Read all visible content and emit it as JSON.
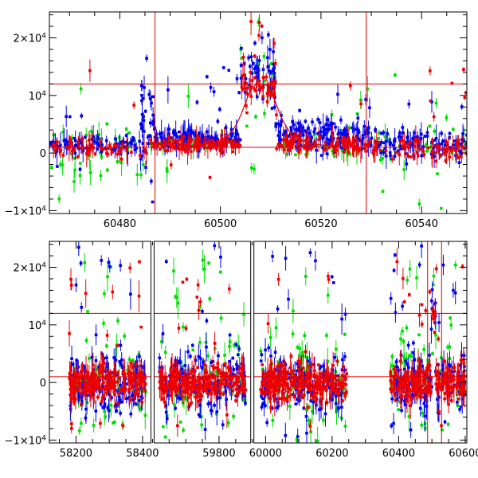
{
  "chart_data": [
    {
      "type": "scatter",
      "panel": "top",
      "title": "",
      "xlabel": "",
      "ylabel": "",
      "xlim": [
        60466,
        60549
      ],
      "ylim": [
        -10500,
        24500
      ],
      "x_ticks": [
        60480,
        60500,
        60520,
        60540
      ],
      "x_tick_labels": [
        "60480",
        "60500",
        "60520",
        "60540"
      ],
      "y_ticks": [
        -10000,
        0,
        10000,
        20000
      ],
      "y_tick_labels": [
        {
          "m": "−1×10",
          "e": "4"
        },
        {
          "m": "0",
          "e": ""
        },
        {
          "m": "10",
          "e": "4"
        },
        {
          "m": "2×10",
          "e": "4"
        }
      ],
      "reference_lines": {
        "horizontal": [
          12000,
          1000
        ],
        "vertical": [
          60487,
          60529
        ]
      },
      "model_curve": {
        "baseline": 1000,
        "peak_x": 60508,
        "peak_height": 11000,
        "half_width": 4
      },
      "series": [
        {
          "color": "#00dd00",
          "segments": [
            {
              "x0": 60466,
              "x1": 60486,
              "n": 45,
              "base": 0,
              "sigma": 2500,
              "outlier_frac": 0.2,
              "out_lo": -11000,
              "out_hi": 14000
            },
            {
              "x0": 60486,
              "x1": 60504,
              "n": 30,
              "base": 1800,
              "sigma": 500,
              "outlier_frac": 0.1,
              "out_lo": -7000,
              "out_hi": 10000
            },
            {
              "x0": 60504,
              "x1": 60512,
              "n": 18,
              "base": 13000,
              "sigma": 4000,
              "outlier_frac": 0.3,
              "out_lo": -7000,
              "out_hi": 24000
            },
            {
              "x0": 60512,
              "x1": 60530,
              "n": 35,
              "base": 800,
              "sigma": 1200,
              "outlier_frac": 0.2,
              "out_lo": -10000,
              "out_hi": 22000
            },
            {
              "x0": 60530,
              "x1": 60549,
              "n": 35,
              "base": 500,
              "sigma": 2000,
              "outlier_frac": 0.2,
              "out_lo": -10000,
              "out_hi": 22000
            }
          ]
        },
        {
          "color": "#0000ee",
          "segments": [
            {
              "x0": 60466,
              "x1": 60484,
              "n": 90,
              "base": 1500,
              "sigma": 700,
              "outlier_frac": 0.06,
              "out_lo": -3000,
              "out_hi": 7000
            },
            {
              "x0": 60484,
              "x1": 60487,
              "n": 40,
              "base": 5000,
              "sigma": 4500,
              "outlier_frac": 0.1,
              "out_lo": -3000,
              "out_hi": 13000
            },
            {
              "x0": 60487,
              "x1": 60504,
              "n": 140,
              "base": 2500,
              "sigma": 800,
              "outlier_frac": 0.08,
              "out_lo": 0,
              "out_hi": 15000
            },
            {
              "x0": 60504,
              "x1": 60511,
              "n": 50,
              "base": 14000,
              "sigma": 3500,
              "outlier_frac": 0.05,
              "out_lo": 8000,
              "out_hi": 22000
            },
            {
              "x0": 60511,
              "x1": 60530,
              "n": 170,
              "base": 3000,
              "sigma": 1300,
              "outlier_frac": 0.08,
              "out_lo": 0,
              "out_hi": 12000
            },
            {
              "x0": 60530,
              "x1": 60549,
              "n": 120,
              "base": 1500,
              "sigma": 1200,
              "outlier_frac": 0.06,
              "out_lo": -2000,
              "out_hi": 10000
            }
          ]
        },
        {
          "color": "#ee0000",
          "segments": [
            {
              "x0": 60466,
              "x1": 60486,
              "n": 60,
              "base": 600,
              "sigma": 700,
              "outlier_frac": 0.08,
              "out_lo": -10000,
              "out_hi": 15000
            },
            {
              "x0": 60486,
              "x1": 60504,
              "n": 120,
              "base": 1500,
              "sigma": 500,
              "outlier_frac": 0.04,
              "out_lo": -7000,
              "out_hi": 3000
            },
            {
              "x0": 60504,
              "x1": 60511,
              "n": 50,
              "base": 11500,
              "sigma": 1500,
              "outlier_frac": 0.2,
              "out_lo": 15000,
              "out_hi": 23500
            },
            {
              "x0": 60511,
              "x1": 60530,
              "n": 110,
              "base": 1500,
              "sigma": 700,
              "outlier_frac": 0.04,
              "out_lo": -2000,
              "out_hi": 13000
            },
            {
              "x0": 60530,
              "x1": 60549,
              "n": 80,
              "base": 700,
              "sigma": 800,
              "outlier_frac": 0.12,
              "out_lo": -2000,
              "out_hi": 15000
            }
          ]
        }
      ]
    },
    {
      "type": "scatter",
      "panel": "bottom",
      "title": "",
      "xlabel": "",
      "ylabel": "",
      "xlim": [
        58120,
        60605
      ],
      "x_breaks": [
        [
          58430,
          59600
        ],
        [
          59900,
          59960
        ]
      ],
      "ylim": [
        -10500,
        24500
      ],
      "x_ticks": [
        58200,
        58400,
        59800,
        60000,
        60200,
        60400,
        60600
      ],
      "x_tick_labels": [
        "58200",
        "58400",
        "59800",
        "60000",
        "60200",
        "60400",
        "60600"
      ],
      "y_ticks": [
        -10000,
        0,
        10000,
        20000
      ],
      "y_tick_labels": [
        {
          "m": "−1×10",
          "e": "4"
        },
        {
          "m": "0",
          "e": ""
        },
        {
          "m": "10",
          "e": "4"
        },
        {
          "m": "2×10",
          "e": "4"
        }
      ],
      "reference_lines": {
        "horizontal": [
          12000,
          1000
        ],
        "vertical": [
          60487,
          60529
        ]
      },
      "seasons": [
        [
          58180,
          58410
        ],
        [
          59620,
          59880
        ],
        [
          59985,
          60245
        ],
        [
          60375,
          60600
        ]
      ],
      "series": [
        {
          "color": "#00dd00",
          "points_per_season": 70,
          "sigma": 4500,
          "outlier_frac": 0.25,
          "out_lo": -10500,
          "out_hi": 23000
        },
        {
          "color": "#0000ee",
          "points_per_season": 160,
          "sigma": 2500,
          "outlier_frac": 0.12,
          "out_lo": -10000,
          "out_hi": 24000
        },
        {
          "color": "#ee0000",
          "points_per_season": 260,
          "sigma": 1500,
          "outlier_frac": 0.06,
          "out_lo": -8000,
          "out_hi": 21000
        }
      ]
    }
  ]
}
